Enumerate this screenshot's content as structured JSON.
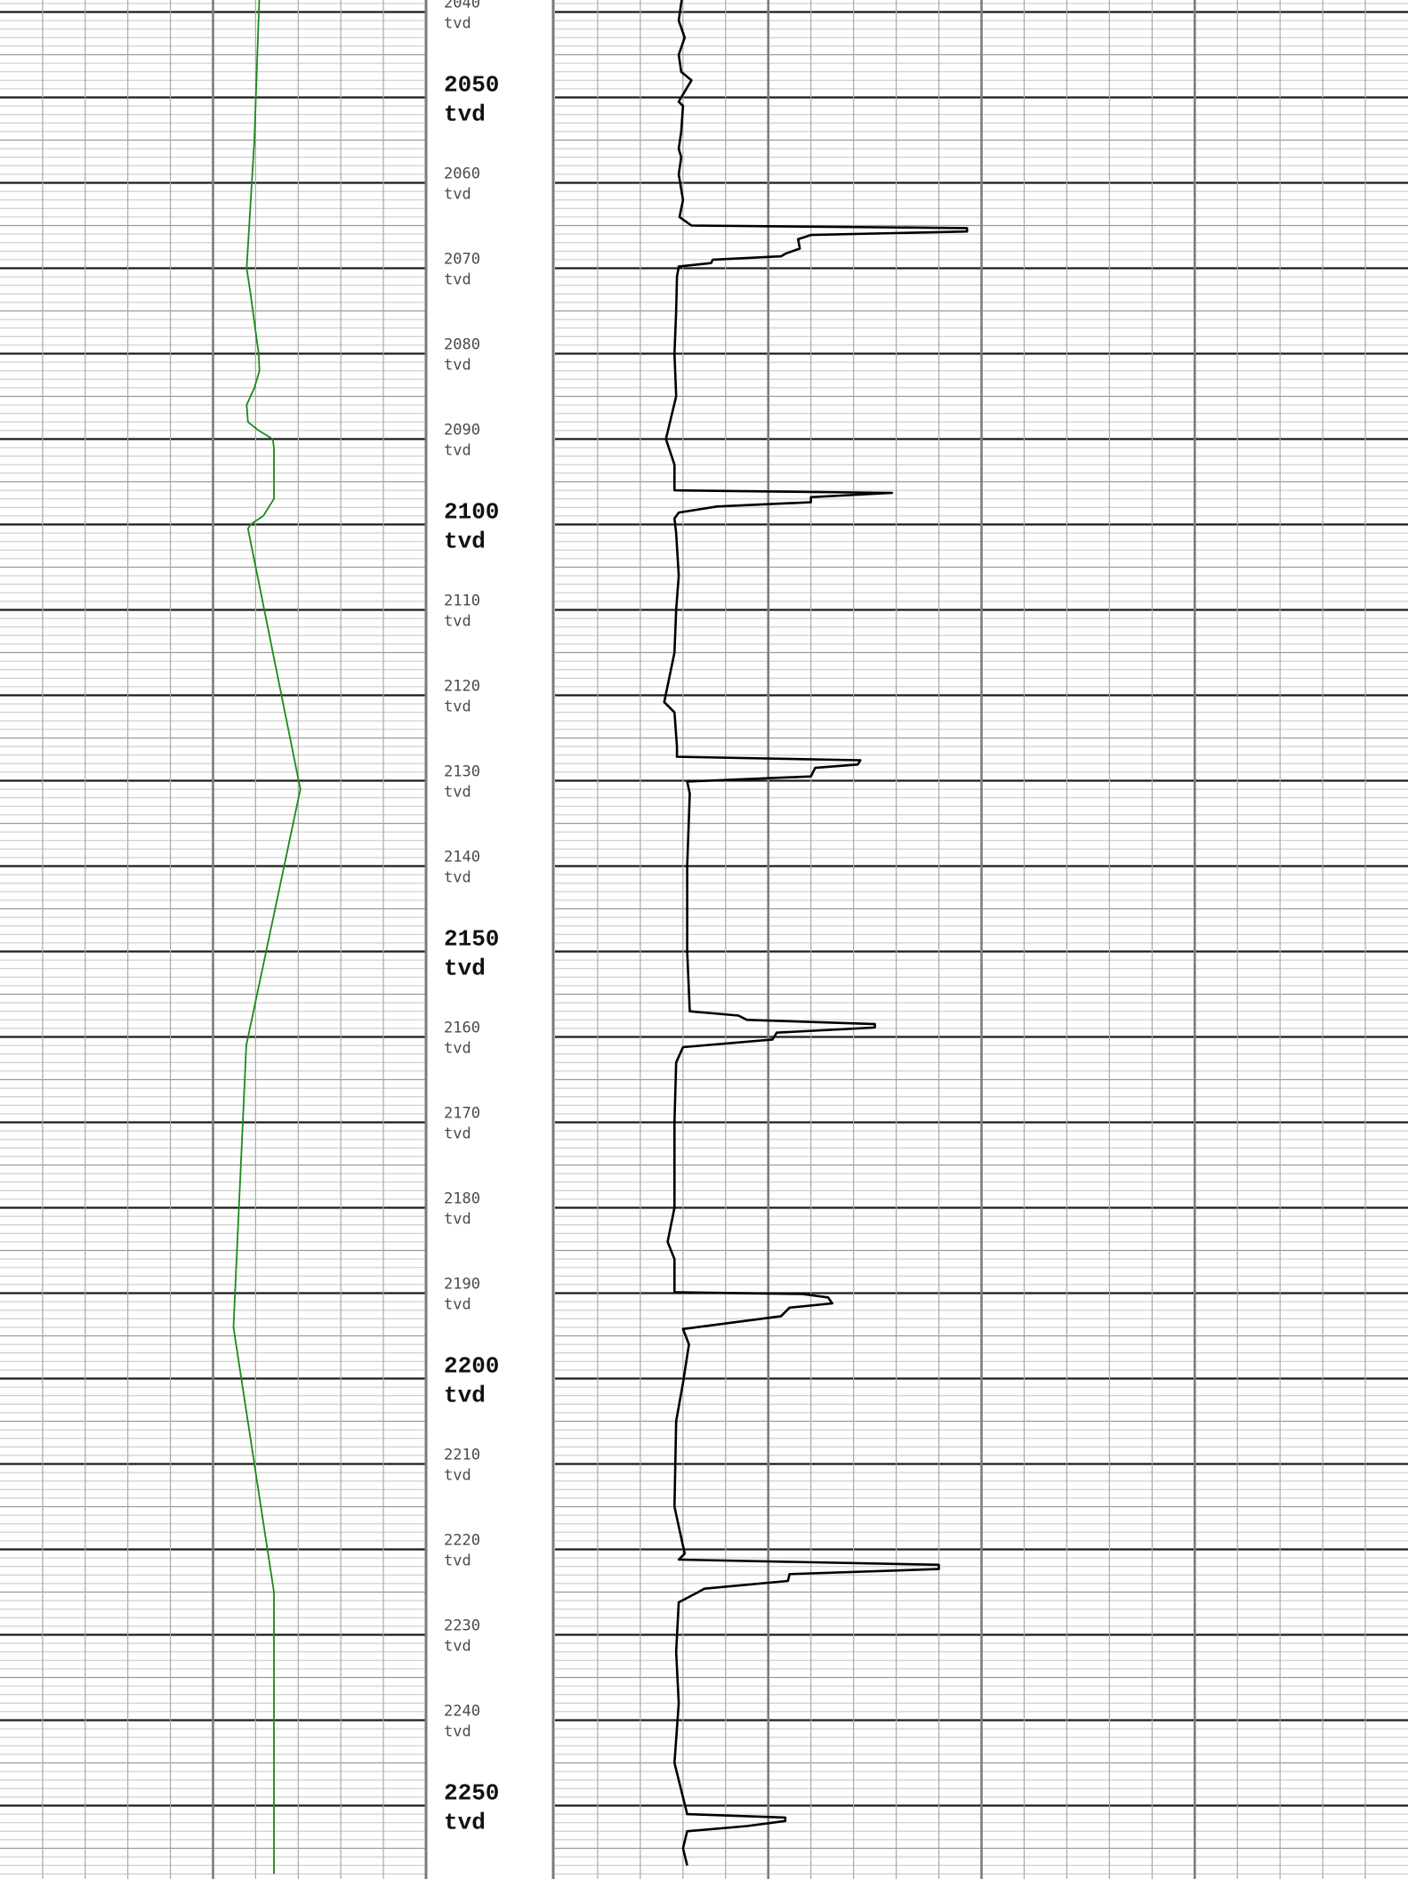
{
  "chart_data": {
    "type": "line",
    "depth_unit": "tvd",
    "depth_range": [
      2038,
      2258
    ],
    "depth_labels": [
      {
        "depth": 2040,
        "text": "2040",
        "unit": "tvd",
        "major": false
      },
      {
        "depth": 2050,
        "text": "2050",
        "unit": "tvd",
        "major": true
      },
      {
        "depth": 2060,
        "text": "2060",
        "unit": "tvd",
        "major": false
      },
      {
        "depth": 2070,
        "text": "2070",
        "unit": "tvd",
        "major": false
      },
      {
        "depth": 2080,
        "text": "2080",
        "unit": "tvd",
        "major": false
      },
      {
        "depth": 2090,
        "text": "2090",
        "unit": "tvd",
        "major": false
      },
      {
        "depth": 2100,
        "text": "2100",
        "unit": "tvd",
        "major": true
      },
      {
        "depth": 2110,
        "text": "2110",
        "unit": "tvd",
        "major": false
      },
      {
        "depth": 2120,
        "text": "2120",
        "unit": "tvd",
        "major": false
      },
      {
        "depth": 2130,
        "text": "2130",
        "unit": "tvd",
        "major": false
      },
      {
        "depth": 2140,
        "text": "2140",
        "unit": "tvd",
        "major": false
      },
      {
        "depth": 2150,
        "text": "2150",
        "unit": "tvd",
        "major": true
      },
      {
        "depth": 2160,
        "text": "2160",
        "unit": "tvd",
        "major": false
      },
      {
        "depth": 2170,
        "text": "2170",
        "unit": "tvd",
        "major": false
      },
      {
        "depth": 2180,
        "text": "2180",
        "unit": "tvd",
        "major": false
      },
      {
        "depth": 2190,
        "text": "2190",
        "unit": "tvd",
        "major": false
      },
      {
        "depth": 2200,
        "text": "2200",
        "unit": "tvd",
        "major": true
      },
      {
        "depth": 2210,
        "text": "2210",
        "unit": "tvd",
        "major": false
      },
      {
        "depth": 2220,
        "text": "2220",
        "unit": "tvd",
        "major": false
      },
      {
        "depth": 2230,
        "text": "2230",
        "unit": "tvd",
        "major": false
      },
      {
        "depth": 2240,
        "text": "2240",
        "unit": "tvd",
        "major": false
      },
      {
        "depth": 2250,
        "text": "2250",
        "unit": "tvd",
        "major": true
      }
    ],
    "tracks": [
      {
        "id": "left-track",
        "grid": true,
        "columns": 10,
        "series": [
          {
            "color": "#1a8a1a",
            "points": [
              [
                0.609,
                2038
              ],
              [
                0.597,
                2055
              ],
              [
                0.579,
                2070
              ],
              [
                0.588,
                2073
              ],
              [
                0.607,
                2080
              ],
              [
                0.609,
                2082
              ],
              [
                0.597,
                2084
              ],
              [
                0.579,
                2086
              ],
              [
                0.582,
                2088
              ],
              [
                0.607,
                2089
              ],
              [
                0.64,
                2090
              ],
              [
                0.643,
                2091
              ],
              [
                0.643,
                2097
              ],
              [
                0.618,
                2099
              ],
              [
                0.588,
                2100
              ],
              [
                0.582,
                2100.5
              ],
              [
                0.705,
                2131
              ],
              [
                0.578,
                2161
              ],
              [
                0.548,
                2194
              ],
              [
                0.643,
                2225
              ],
              [
                0.643,
                2258
              ]
            ]
          }
        ]
      },
      {
        "id": "right-track",
        "grid": true,
        "columns": 20,
        "series": [
          {
            "color": "#000000",
            "points": [
              [
                0.15,
                2037.5
              ],
              [
                0.145,
                2041
              ],
              [
                0.152,
                2043
              ],
              [
                0.145,
                2045
              ],
              [
                0.148,
                2047
              ],
              [
                0.16,
                2048
              ],
              [
                0.148,
                2050
              ],
              [
                0.145,
                2050.5
              ],
              [
                0.15,
                2051
              ],
              [
                0.148,
                2054
              ],
              [
                0.145,
                2056
              ],
              [
                0.148,
                2057
              ],
              [
                0.145,
                2059
              ],
              [
                0.15,
                2062
              ],
              [
                0.146,
                2064
              ],
              [
                0.16,
                2065
              ],
              [
                0.483,
                2065.3
              ],
              [
                0.483,
                2065.7
              ],
              [
                0.3,
                2066.1
              ],
              [
                0.285,
                2066.6
              ],
              [
                0.287,
                2067.7
              ],
              [
                0.27,
                2068.3
              ],
              [
                0.265,
                2068.6
              ],
              [
                0.185,
                2069
              ],
              [
                0.183,
                2069.4
              ],
              [
                0.145,
                2069.8
              ],
              [
                0.143,
                2071
              ],
              [
                0.142,
                2075
              ],
              [
                0.14,
                2080
              ],
              [
                0.142,
                2085
              ],
              [
                0.13,
                2090
              ],
              [
                0.14,
                2093
              ],
              [
                0.14,
                2096
              ],
              [
                0.395,
                2096.3
              ],
              [
                0.3,
                2096.8
              ],
              [
                0.3,
                2097.4
              ],
              [
                0.19,
                2097.9
              ],
              [
                0.145,
                2098.6
              ],
              [
                0.14,
                2099.3
              ],
              [
                0.142,
                2101
              ],
              [
                0.145,
                2106
              ],
              [
                0.142,
                2110
              ],
              [
                0.14,
                2115
              ],
              [
                0.128,
                2120.8
              ],
              [
                0.14,
                2122
              ],
              [
                0.143,
                2126
              ],
              [
                0.143,
                2127.2
              ],
              [
                0.358,
                2127.6
              ],
              [
                0.355,
                2128.1
              ],
              [
                0.305,
                2128.5
              ],
              [
                0.3,
                2129.5
              ],
              [
                0.155,
                2130.1
              ],
              [
                0.158,
                2131.5
              ],
              [
                0.155,
                2140
              ],
              [
                0.155,
                2150
              ],
              [
                0.158,
                2157
              ],
              [
                0.215,
                2157.5
              ],
              [
                0.225,
                2158
              ],
              [
                0.375,
                2158.5
              ],
              [
                0.375,
                2158.9
              ],
              [
                0.26,
                2159.5
              ],
              [
                0.255,
                2160.3
              ],
              [
                0.15,
                2161.2
              ],
              [
                0.142,
                2163
              ],
              [
                0.14,
                2170
              ],
              [
                0.14,
                2180
              ],
              [
                0.132,
                2184
              ],
              [
                0.14,
                2186
              ],
              [
                0.14,
                2189.9
              ],
              [
                0.29,
                2190.1
              ],
              [
                0.32,
                2190.5
              ],
              [
                0.325,
                2191.2
              ],
              [
                0.275,
                2191.7
              ],
              [
                0.265,
                2192.7
              ],
              [
                0.15,
                2194.2
              ],
              [
                0.157,
                2196
              ],
              [
                0.15,
                2200.5
              ],
              [
                0.142,
                2205
              ],
              [
                0.14,
                2215
              ],
              [
                0.152,
                2220.5
              ],
              [
                0.145,
                2221.2
              ],
              [
                0.45,
                2221.8
              ],
              [
                0.45,
                2222.3
              ],
              [
                0.275,
                2222.9
              ],
              [
                0.273,
                2223.7
              ],
              [
                0.175,
                2224.6
              ],
              [
                0.168,
                2225
              ],
              [
                0.145,
                2226.2
              ],
              [
                0.142,
                2232
              ],
              [
                0.145,
                2238
              ],
              [
                0.14,
                2245
              ],
              [
                0.155,
                2251
              ],
              [
                0.27,
                2251.4
              ],
              [
                0.27,
                2251.8
              ],
              [
                0.225,
                2252.4
              ],
              [
                0.155,
                2253
              ],
              [
                0.15,
                2255
              ],
              [
                0.155,
                2257
              ]
            ]
          }
        ]
      }
    ]
  }
}
